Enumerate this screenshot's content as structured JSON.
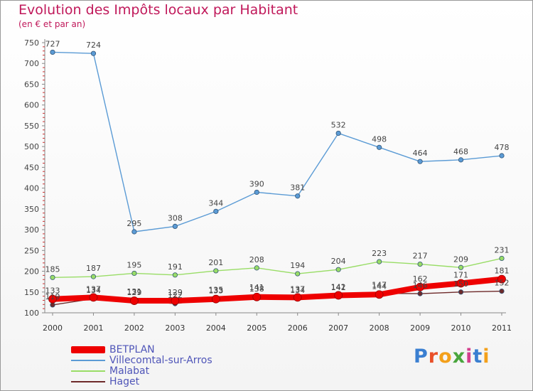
{
  "title": "Evolution des Impôts locaux par Habitant",
  "subtitle": "(en € et par an)",
  "logo": {
    "text": "Proxiti",
    "colors": [
      "#3a7fd1",
      "#e94f28",
      "#f3a01b",
      "#49a53d",
      "#d43f8d",
      "#3a7fd1",
      "#f3a01b"
    ]
  },
  "chart_data": {
    "type": "line",
    "x": [
      "2000",
      "2001",
      "2002",
      "2003",
      "2004",
      "2005",
      "2006",
      "2007",
      "2008",
      "2009",
      "2010",
      "2011"
    ],
    "ylim": [
      100,
      750
    ],
    "yticks": [
      100,
      150,
      200,
      250,
      300,
      350,
      400,
      450,
      500,
      550,
      600,
      650,
      700,
      750
    ],
    "grid": false,
    "legend_position": "bottom-left",
    "series": [
      {
        "name": "BETPLAN",
        "color": "#ee0000",
        "values": [
          133,
          137,
          129,
          129,
          133,
          138,
          137,
          142,
          144,
          162,
          171,
          181
        ]
      },
      {
        "name": "Villecomtal-sur-Arros",
        "color": "#5b9bd5",
        "values": [
          727,
          724,
          295,
          308,
          344,
          390,
          381,
          532,
          498,
          464,
          468,
          478
        ]
      },
      {
        "name": "Malabat",
        "color": "#99dd66",
        "values": [
          185,
          187,
          195,
          191,
          201,
          208,
          194,
          204,
          223,
          217,
          209,
          231
        ]
      },
      {
        "name": "Haget",
        "color": "#6e2a2a",
        "values": [
          119,
          134,
          131,
          122,
          135,
          141,
          134,
          141,
          147,
          146,
          150,
          152
        ]
      }
    ]
  }
}
